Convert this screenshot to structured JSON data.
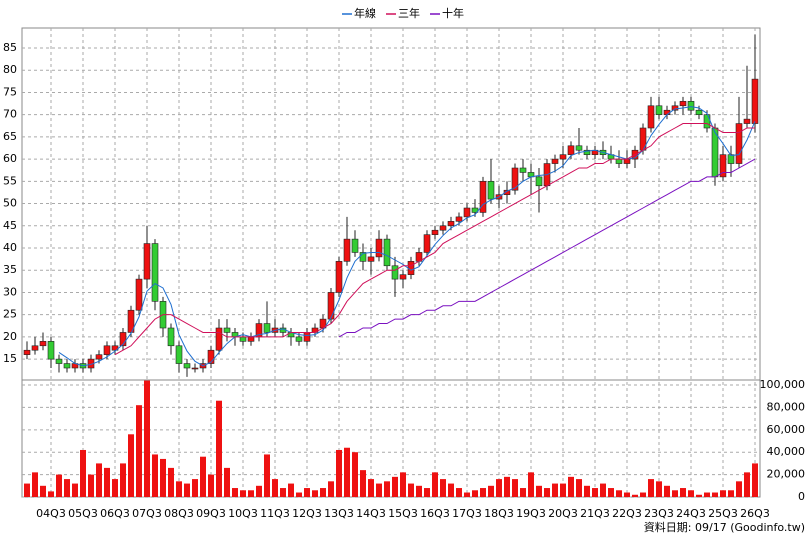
{
  "chart_data": {
    "type": "candlestick",
    "categories": [
      null,
      null,
      null,
      "04Q3",
      null,
      null,
      null,
      "05Q3",
      null,
      null,
      null,
      "06Q3",
      null,
      null,
      null,
      "07Q3",
      null,
      null,
      null,
      "08Q3",
      null,
      null,
      null,
      "09Q3",
      null,
      null,
      null,
      "10Q3",
      null,
      null,
      null,
      "11Q3",
      null,
      null,
      null,
      "12Q3",
      null,
      null,
      null,
      "13Q3",
      null,
      null,
      null,
      "14Q3",
      null,
      null,
      null,
      "15Q3",
      null,
      null,
      null,
      "16Q3",
      null,
      null,
      null,
      "17Q3",
      null,
      null,
      null,
      "18Q3",
      null,
      null,
      null,
      "19Q3",
      null,
      null,
      null,
      "20Q3",
      null,
      null,
      null,
      "21Q3",
      null,
      null,
      null,
      "22Q3",
      null,
      null,
      null,
      "23Q3",
      null,
      null,
      null,
      "24Q3",
      null,
      null,
      null,
      "25Q3",
      null,
      null,
      null,
      "26Q3"
    ],
    "ohlc": [
      [
        16,
        19,
        15,
        17
      ],
      [
        17,
        20,
        16,
        18
      ],
      [
        18,
        21,
        17,
        19
      ],
      [
        19,
        20,
        13,
        15
      ],
      [
        15,
        16,
        12,
        14
      ],
      [
        14,
        15,
        12,
        13
      ],
      [
        13,
        15,
        12,
        14
      ],
      [
        14,
        15,
        12,
        13
      ],
      [
        13,
        16,
        12,
        15
      ],
      [
        15,
        17,
        14,
        16
      ],
      [
        16,
        19,
        15,
        18
      ],
      [
        17,
        19,
        16,
        18
      ],
      [
        18,
        22,
        17,
        21
      ],
      [
        21,
        27,
        20,
        26
      ],
      [
        26,
        34,
        25,
        33
      ],
      [
        33,
        45,
        31,
        41
      ],
      [
        41,
        42,
        26,
        28
      ],
      [
        28,
        29,
        20,
        22
      ],
      [
        22,
        23,
        16,
        18
      ],
      [
        18,
        19,
        12,
        14
      ],
      [
        14,
        15,
        11,
        13
      ],
      [
        13,
        14,
        12,
        13
      ],
      [
        13,
        15,
        12,
        14
      ],
      [
        14,
        18,
        13,
        17
      ],
      [
        17,
        24,
        16,
        22
      ],
      [
        22,
        24,
        19,
        21
      ],
      [
        21,
        22,
        18,
        20
      ],
      [
        20,
        21,
        18,
        19
      ],
      [
        19,
        21,
        18,
        20
      ],
      [
        20,
        24,
        19,
        23
      ],
      [
        23,
        28,
        20,
        21
      ],
      [
        21,
        24,
        20,
        22
      ],
      [
        22,
        23,
        20,
        21
      ],
      [
        21,
        22,
        18,
        20
      ],
      [
        20,
        21,
        18,
        19
      ],
      [
        19,
        22,
        18,
        21
      ],
      [
        21,
        23,
        20,
        22
      ],
      [
        22,
        25,
        21,
        24
      ],
      [
        24,
        31,
        23,
        30
      ],
      [
        30,
        38,
        29,
        37
      ],
      [
        37,
        47,
        36,
        42
      ],
      [
        42,
        44,
        38,
        39
      ],
      [
        39,
        41,
        35,
        37
      ],
      [
        37,
        40,
        34,
        38
      ],
      [
        38,
        44,
        37,
        42
      ],
      [
        42,
        43,
        35,
        36
      ],
      [
        36,
        38,
        29,
        33
      ],
      [
        33,
        35,
        31,
        34
      ],
      [
        34,
        38,
        33,
        37
      ],
      [
        37,
        40,
        36,
        39
      ],
      [
        39,
        44,
        38,
        43
      ],
      [
        43,
        45,
        42,
        44
      ],
      [
        44,
        46,
        43,
        45
      ],
      [
        45,
        47,
        44,
        46
      ],
      [
        46,
        48,
        45,
        47
      ],
      [
        47,
        50,
        46,
        49
      ],
      [
        49,
        51,
        47,
        48
      ],
      [
        48,
        56,
        47,
        55
      ],
      [
        55,
        60,
        50,
        51
      ],
      [
        51,
        54,
        49,
        52
      ],
      [
        52,
        55,
        50,
        53
      ],
      [
        53,
        59,
        52,
        58
      ],
      [
        58,
        60,
        55,
        57
      ],
      [
        57,
        59,
        52,
        56
      ],
      [
        56,
        58,
        48,
        54
      ],
      [
        54,
        60,
        53,
        59
      ],
      [
        59,
        61,
        57,
        60
      ],
      [
        60,
        63,
        58,
        61
      ],
      [
        61,
        64,
        60,
        63
      ],
      [
        63,
        67,
        61,
        62
      ],
      [
        62,
        63,
        60,
        61
      ],
      [
        61,
        63,
        60,
        62
      ],
      [
        62,
        64,
        60,
        61
      ],
      [
        61,
        63,
        59,
        60
      ],
      [
        60,
        62,
        58,
        59
      ],
      [
        59,
        62,
        58,
        60
      ],
      [
        60,
        63,
        58,
        62
      ],
      [
        62,
        68,
        61,
        67
      ],
      [
        67,
        74,
        66,
        72
      ],
      [
        72,
        74,
        69,
        70
      ],
      [
        70,
        72,
        69,
        71
      ],
      [
        71,
        73,
        70,
        72
      ],
      [
        72,
        74,
        70,
        73
      ],
      [
        73,
        74,
        70,
        71
      ],
      [
        71,
        72,
        69,
        70
      ],
      [
        70,
        71,
        66,
        67
      ],
      [
        67,
        68,
        54,
        56
      ],
      [
        56,
        63,
        55,
        61
      ],
      [
        61,
        63,
        56,
        59
      ],
      [
        59,
        74,
        58,
        68
      ],
      [
        68,
        81,
        67,
        69
      ],
      [
        68,
        88,
        66,
        78
      ]
    ],
    "up_color": "#ee1111",
    "down_color": "#33cc33",
    "series": [
      {
        "name": "年線",
        "color": "#1f6fd0",
        "values": [
          null,
          null,
          null,
          null,
          16.5,
          15.3,
          14,
          13.5,
          13.8,
          14.5,
          15.5,
          16.8,
          18.3,
          20.8,
          24.5,
          30.3,
          32,
          31,
          27.3,
          20.5,
          16.8,
          14.5,
          13.5,
          14.3,
          16.5,
          18.5,
          20,
          20.5,
          20,
          20.5,
          20.8,
          21.5,
          21.8,
          21,
          20.5,
          20.3,
          20.5,
          21.5,
          24.3,
          28.3,
          33.3,
          37,
          38.8,
          39,
          39,
          38.3,
          37.3,
          36.3,
          35,
          35.8,
          38.3,
          40.8,
          42.8,
          44.5,
          45.5,
          46.8,
          47.5,
          49.8,
          50.8,
          51.5,
          52.8,
          53.5,
          55,
          56,
          56.3,
          56.5,
          57.3,
          58.5,
          60.8,
          61.5,
          61.8,
          62,
          61.5,
          61,
          60.5,
          60,
          60.3,
          62,
          65.3,
          67.8,
          70,
          71.3,
          71.5,
          71.8,
          71.5,
          70.3,
          66,
          63.5,
          60.8,
          61,
          64.3,
          68.5
        ]
      },
      {
        "name": "三年",
        "color": "#d0105a",
        "values": [
          null,
          null,
          null,
          null,
          null,
          null,
          null,
          null,
          null,
          null,
          null,
          16,
          17,
          18,
          20,
          22,
          24,
          25,
          25,
          24,
          23,
          22,
          21,
          21,
          21,
          20,
          20,
          20,
          20,
          20,
          20,
          20,
          20,
          21,
          21,
          21,
          21,
          22,
          23,
          25,
          28,
          30,
          32,
          33,
          34,
          35,
          35,
          36,
          36,
          37,
          38,
          39,
          41,
          42,
          43,
          44,
          45,
          46,
          47,
          48,
          49,
          50,
          51,
          52,
          53,
          54,
          55,
          56,
          57,
          58,
          58,
          59,
          59,
          60,
          60,
          60,
          61,
          62,
          63,
          65,
          66,
          67,
          68,
          68,
          68,
          68,
          67,
          66,
          66,
          66,
          67,
          67
        ]
      },
      {
        "name": "十年",
        "color": "#7a10c0",
        "values": [
          null,
          null,
          null,
          null,
          null,
          null,
          null,
          null,
          null,
          null,
          null,
          null,
          null,
          null,
          null,
          null,
          null,
          null,
          null,
          null,
          null,
          null,
          null,
          null,
          null,
          null,
          null,
          null,
          null,
          null,
          null,
          null,
          null,
          null,
          null,
          null,
          null,
          null,
          null,
          20,
          21,
          21,
          22,
          22,
          23,
          23,
          24,
          24,
          25,
          25,
          26,
          26,
          27,
          27,
          28,
          28,
          28,
          29,
          30,
          31,
          32,
          33,
          34,
          35,
          36,
          37,
          38,
          39,
          40,
          41,
          42,
          43,
          44,
          45,
          46,
          47,
          48,
          49,
          50,
          51,
          52,
          53,
          54,
          55,
          55,
          56,
          56,
          57,
          57,
          58,
          59,
          60
        ]
      }
    ],
    "ylim": [
      10.3,
      89.5
    ],
    "yticks": [
      15,
      20,
      25,
      30,
      35,
      40,
      45,
      50,
      55,
      60,
      65,
      70,
      75,
      80,
      85
    ],
    "grid": true,
    "volume": {
      "color": "#ee1111",
      "ylim": [
        0,
        104500
      ],
      "yticks": [
        0,
        {
          "value": 20000,
          "label": "20,000"
        },
        {
          "value": 40000,
          "label": "40,000"
        },
        {
          "value": 60000,
          "label": "60,000"
        },
        {
          "value": 80000,
          "label": "80,000"
        },
        {
          "value": 100000,
          "label": "100,000"
        }
      ],
      "values": [
        12000,
        22000,
        10000,
        5000,
        20000,
        16000,
        12000,
        42000,
        20000,
        30000,
        26000,
        16000,
        30000,
        56000,
        82000,
        104000,
        38000,
        34000,
        26000,
        14000,
        12000,
        16000,
        36000,
        20000,
        86000,
        26000,
        8000,
        6000,
        6000,
        10000,
        38000,
        16000,
        8000,
        12000,
        4000,
        8000,
        6000,
        8000,
        14000,
        42000,
        44000,
        40000,
        24000,
        16000,
        12000,
        14000,
        18000,
        22000,
        12000,
        10000,
        8000,
        22000,
        16000,
        12000,
        8000,
        4000,
        6000,
        8000,
        10000,
        16000,
        18000,
        16000,
        8000,
        22000,
        10000,
        8000,
        12000,
        12000,
        18000,
        16000,
        10000,
        8000,
        12000,
        8000,
        6000,
        4000,
        2000,
        4000,
        16000,
        14000,
        10000,
        6000,
        8000,
        6000,
        2000,
        4000,
        4000,
        6000,
        6000,
        14000,
        22000,
        30000
      ]
    },
    "footnote": "資料日期: 09/17 (Goodinfo.tw)"
  }
}
